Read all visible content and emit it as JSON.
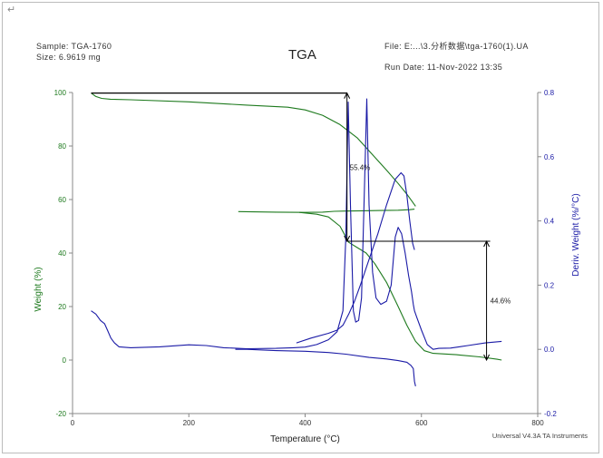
{
  "header": {
    "corner_mark": "↵",
    "sample": "Sample: TGA-1760",
    "size": "Size:  6.9619 mg",
    "file": "File: E:...\\3.分析数据\\tga-1760(1).UA",
    "run_date": "Run Date: 11-Nov-2022 13:35",
    "instrument": "Universal V4.3A TA Instruments"
  },
  "colors": {
    "weight": "#1e7a1e",
    "deriv": "#1a1aa6",
    "annotation": "#000000"
  },
  "chart_data": {
    "type": "line",
    "title": "TGA",
    "xlabel": "Temperature (°C)",
    "ylabel": "Weight (%)",
    "y2label": "Deriv. Weight (%/°C)",
    "xlim": [
      0,
      800
    ],
    "ylim": [
      -20,
      100
    ],
    "y2lim": [
      -0.2,
      0.8
    ],
    "xticks": [
      0,
      200,
      400,
      600,
      800
    ],
    "yticks": [
      -20,
      0,
      20,
      40,
      60,
      80,
      100
    ],
    "y2ticks": [
      -0.2,
      0.0,
      0.2,
      0.4,
      0.6,
      0.8
    ],
    "grid": false,
    "series": [
      {
        "axis": "left",
        "color": "#1e7a1e",
        "segments": [
          [
            [
              32,
              99.8
            ],
            [
              40,
              98.5
            ],
            [
              50,
              97.8
            ],
            [
              65,
              97.5
            ],
            [
              100,
              97.3
            ],
            [
              200,
              96.5
            ],
            [
              300,
              95.3
            ],
            [
              370,
              94.5
            ],
            [
              400,
              93.5
            ],
            [
              430,
              91.5
            ],
            [
              460,
              88
            ],
            [
              490,
              83
            ],
            [
              515,
              77
            ],
            [
              540,
              71
            ],
            [
              560,
              66
            ],
            [
              575,
              62
            ],
            [
              585,
              59
            ],
            [
              590,
              57.5
            ]
          ],
          [
            [
              285,
              55.5
            ],
            [
              350,
              55.3
            ],
            [
              400,
              55.2
            ],
            [
              430,
              55.3
            ],
            [
              450,
              55.6
            ],
            [
              470,
              55.7
            ],
            [
              500,
              55.8
            ],
            [
              530,
              55.9
            ],
            [
              560,
              56
            ],
            [
              580,
              56.2
            ],
            [
              588,
              56.4
            ]
          ],
          [
            [
              390,
              55.2
            ],
            [
              420,
              54.5
            ],
            [
              440,
              53.5
            ],
            [
              460,
              50
            ],
            [
              475,
              44
            ],
            [
              490,
              42
            ],
            [
              505,
              40
            ],
            [
              520,
              36
            ],
            [
              540,
              29
            ],
            [
              560,
              20
            ],
            [
              575,
              13
            ],
            [
              590,
              7
            ],
            [
              605,
              3.5
            ],
            [
              620,
              2.5
            ],
            [
              660,
              2
            ],
            [
              700,
              1.2
            ],
            [
              730,
              0.3
            ],
            [
              738,
              0
            ]
          ]
        ]
      },
      {
        "axis": "right",
        "color": "#1a1aa6",
        "segments": [
          [
            [
              32,
              0.12
            ],
            [
              40,
              0.11
            ],
            [
              48,
              0.09
            ],
            [
              55,
              0.08
            ],
            [
              60,
              0.06
            ],
            [
              66,
              0.035
            ],
            [
              72,
              0.02
            ],
            [
              80,
              0.008
            ],
            [
              100,
              0.005
            ],
            [
              150,
              0.008
            ],
            [
              200,
              0.014
            ],
            [
              230,
              0.012
            ],
            [
              260,
              0.005
            ],
            [
              300,
              0.002
            ],
            [
              350,
              0.003
            ],
            [
              380,
              0.005
            ],
            [
              400,
              0.007
            ],
            [
              420,
              0.015
            ],
            [
              440,
              0.03
            ],
            [
              455,
              0.055
            ],
            [
              465,
              0.12
            ],
            [
              470,
              0.35
            ],
            [
              474,
              0.77
            ],
            [
              478,
              0.45
            ],
            [
              483,
              0.12
            ],
            [
              487,
              0.085
            ],
            [
              492,
              0.09
            ],
            [
              497,
              0.16
            ],
            [
              502,
              0.5
            ],
            [
              506,
              0.78
            ],
            [
              510,
              0.45
            ],
            [
              516,
              0.24
            ],
            [
              522,
              0.16
            ],
            [
              530,
              0.14
            ],
            [
              540,
              0.15
            ],
            [
              548,
              0.2
            ],
            [
              555,
              0.35
            ],
            [
              560,
              0.38
            ],
            [
              566,
              0.36
            ],
            [
              572,
              0.3
            ],
            [
              578,
              0.23
            ],
            [
              583,
              0.18
            ],
            [
              586,
              0.14
            ],
            [
              588,
              0.12
            ],
            [
              592,
              0.1
            ],
            [
              600,
              0.06
            ],
            [
              610,
              0.015
            ],
            [
              620,
              0.0
            ],
            [
              630,
              0.003
            ],
            [
              650,
              0.004
            ],
            [
              680,
              0.012
            ],
            [
              710,
              0.02
            ],
            [
              738,
              0.025
            ]
          ],
          [
            [
              280,
              0.0
            ],
            [
              300,
              0.0
            ],
            [
              350,
              -0.004
            ],
            [
              400,
              -0.006
            ],
            [
              440,
              -0.01
            ],
            [
              470,
              -0.015
            ],
            [
              510,
              -0.025
            ],
            [
              540,
              -0.03
            ],
            [
              560,
              -0.035
            ],
            [
              575,
              -0.04
            ],
            [
              582,
              -0.05
            ],
            [
              586,
              -0.06
            ],
            [
              588,
              -0.1
            ],
            [
              590,
              -0.115
            ]
          ],
          [
            [
              385,
              0.02
            ],
            [
              410,
              0.035
            ],
            [
              440,
              0.05
            ],
            [
              455,
              0.06
            ],
            [
              465,
              0.075
            ],
            [
              475,
              0.11
            ],
            [
              485,
              0.15
            ],
            [
              495,
              0.2
            ],
            [
              510,
              0.28
            ],
            [
              525,
              0.36
            ],
            [
              540,
              0.45
            ],
            [
              555,
              0.53
            ],
            [
              565,
              0.55
            ],
            [
              570,
              0.54
            ],
            [
              575,
              0.48
            ],
            [
              580,
              0.4
            ],
            [
              585,
              0.33
            ],
            [
              588,
              0.31
            ]
          ]
        ]
      }
    ],
    "annotations": [
      {
        "label": "55.4%",
        "x": 472,
        "from": 99.8,
        "to": 44.4
      },
      {
        "label": "44.6%",
        "x": 712,
        "from": 44.4,
        "to": 0
      }
    ]
  }
}
